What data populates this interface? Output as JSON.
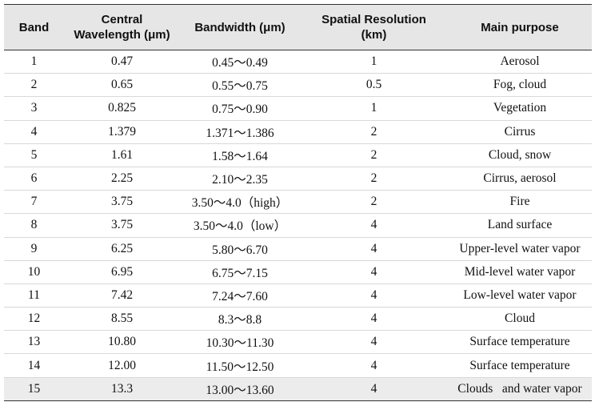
{
  "table": {
    "header": [
      "Band",
      "Central Wavelength (μm)",
      "Bandwidth (μm)",
      "Spatial Resolution (km)",
      "Main purpose"
    ],
    "rows": [
      [
        "1",
        "0.47",
        "0.45～0.49",
        "1",
        "Aerosol"
      ],
      [
        "2",
        "0.65",
        "0.55～0.75",
        "0.5",
        "Fog, cloud"
      ],
      [
        "3",
        "0.825",
        "0.75～0.90",
        "1",
        "Vegetation"
      ],
      [
        "4",
        "1.379",
        "1.371～1.386",
        "2",
        "Cirrus"
      ],
      [
        "5",
        "1.61",
        "1.58～1.64",
        "2",
        "Cloud, snow"
      ],
      [
        "6",
        "2.25",
        "2.10～2.35",
        "2",
        "Cirrus, aerosol"
      ],
      [
        "7",
        "3.75",
        "3.50～4.0（high）",
        "2",
        "Fire"
      ],
      [
        "8",
        "3.75",
        "3.50～4.0（low）",
        "4",
        "Land surface"
      ],
      [
        "9",
        "6.25",
        "5.80～6.70",
        "4",
        "Upper-level water vapor"
      ],
      [
        "10",
        "6.95",
        "6.75～7.15",
        "4",
        "Mid-level water vapor"
      ],
      [
        "11",
        "7.42",
        "7.24～7.60",
        "4",
        "Low-level water vapor"
      ],
      [
        "12",
        "8.55",
        "8.3～8.8",
        "4",
        "Cloud"
      ],
      [
        "13",
        "10.80",
        "10.30～11.30",
        "4",
        "Surface temperature"
      ],
      [
        "14",
        "12.00",
        "11.50～12.50",
        "4",
        "Surface temperature"
      ],
      [
        "15",
        "13.3",
        "13.00～13.60",
        "4",
        "Clouds   and water vapor"
      ]
    ]
  }
}
